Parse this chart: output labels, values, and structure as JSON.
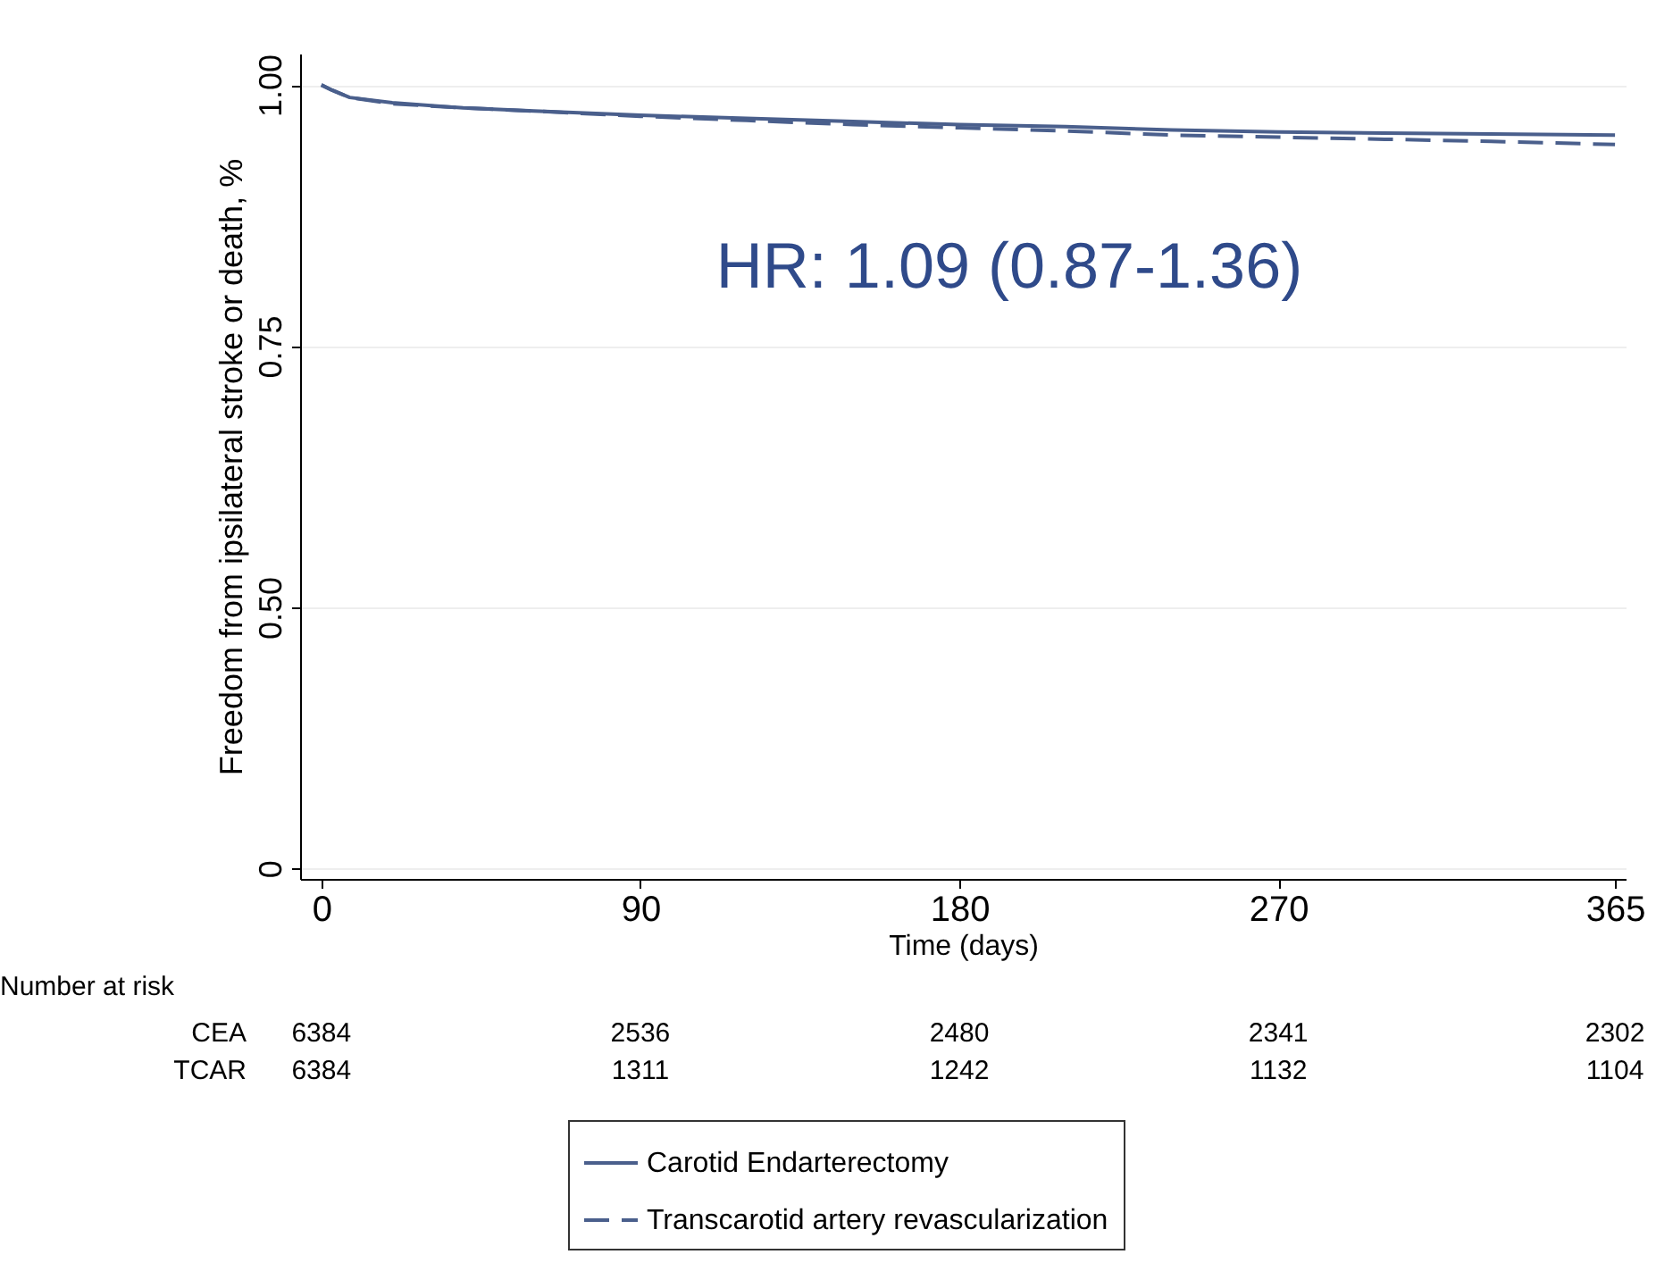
{
  "chart_data": {
    "type": "line",
    "xlabel": "Time (days)",
    "ylabel": "Freedom from ipsilateral stroke or death, %",
    "x": [
      0,
      3,
      8,
      20,
      40,
      60,
      90,
      120,
      150,
      180,
      210,
      240,
      270,
      300,
      330,
      365
    ],
    "series": [
      {
        "name": "Carotid Endarterectomy",
        "color": "#4a5f8c",
        "line_style": "solid",
        "values": [
          1.0,
          0.995,
          0.988,
          0.983,
          0.978,
          0.975,
          0.971,
          0.968,
          0.965,
          0.962,
          0.96,
          0.957,
          0.955,
          0.954,
          0.953,
          0.952
        ]
      },
      {
        "name": "Transcarotid artery revascularization",
        "color": "#4a5f8c",
        "line_style": "dashed",
        "values": [
          1.0,
          0.995,
          0.988,
          0.982,
          0.978,
          0.975,
          0.97,
          0.966,
          0.962,
          0.959,
          0.956,
          0.952,
          0.95,
          0.948,
          0.946,
          0.943
        ]
      }
    ],
    "xlim": [
      -6,
      368
    ],
    "xticks": [
      0,
      90,
      180,
      270,
      365
    ],
    "ylim": [
      0.24,
      1.03
    ],
    "yticks": [
      {
        "value": 0.25,
        "label": "0"
      },
      {
        "value": 0.5,
        "label": "0.50"
      },
      {
        "value": 0.75,
        "label": "0.75"
      },
      {
        "value": 1.0,
        "label": "1.00"
      }
    ],
    "grid": "y",
    "legend": "bottom",
    "marker": "none",
    "annotations": [
      "HR: 1.09 (0.87-1.36)",
      "Number at risk",
      "CEA",
      "6384",
      "2536",
      "2480",
      "2341",
      "2302",
      "TCAR",
      "6384",
      "1311",
      "1242",
      "1132",
      "1104"
    ]
  }
}
